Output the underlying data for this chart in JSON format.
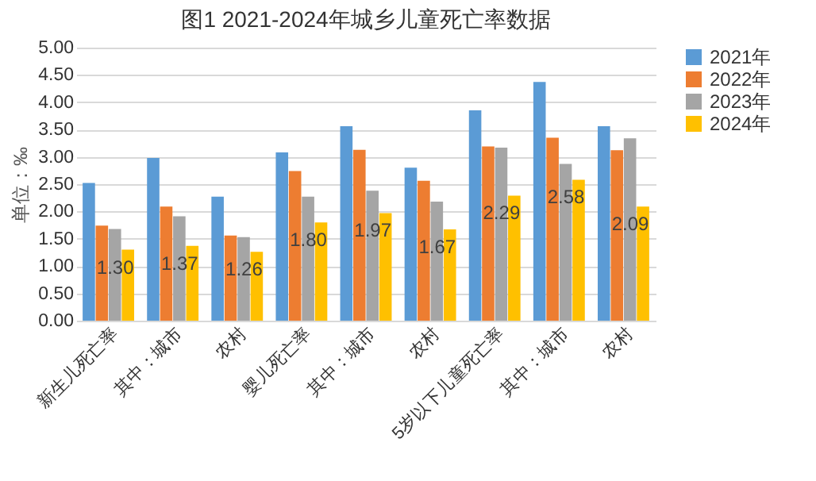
{
  "chart_data": {
    "type": "bar",
    "title": "图1 2021-2024年城乡儿童死亡率数据",
    "ylabel": "单位：‰",
    "categories": [
      "新生儿死亡率",
      "其中：城市",
      "农村",
      "婴儿死亡率",
      "其中：城市",
      "农村",
      "5岁以下儿童死亡率",
      "其中：城市",
      "农村"
    ],
    "series": [
      {
        "name": "2021年",
        "color": "#5b9bd5",
        "values": [
          2.52,
          2.98,
          2.27,
          3.08,
          3.56,
          2.8,
          3.85,
          4.37,
          3.56
        ]
      },
      {
        "name": "2022年",
        "color": "#ed7d31",
        "values": [
          1.74,
          2.09,
          1.56,
          2.74,
          3.13,
          2.56,
          3.19,
          3.35,
          3.12
        ]
      },
      {
        "name": "2023年",
        "color": "#a5a5a5",
        "values": [
          1.68,
          1.91,
          1.53,
          2.27,
          2.38,
          2.18,
          3.17,
          2.87,
          3.34
        ]
      },
      {
        "name": "2024年",
        "color": "#ffc000",
        "values": [
          1.3,
          1.37,
          1.26,
          1.8,
          1.97,
          1.67,
          2.29,
          2.58,
          2.09
        ],
        "value_labels": [
          "1.30",
          "1.37",
          "1.26",
          "1.80",
          "1.97",
          "1.67",
          "2.29",
          "2.58",
          "2.09"
        ]
      }
    ],
    "ylim": [
      0,
      5
    ],
    "yticks": [
      {
        "value": 0,
        "label": "0.00"
      },
      {
        "value": 0.5,
        "label": "0.50"
      },
      {
        "value": 1,
        "label": "1.00"
      },
      {
        "value": 1.5,
        "label": "1.50"
      },
      {
        "value": 2,
        "label": "2.00"
      },
      {
        "value": 2.5,
        "label": "2.50"
      },
      {
        "value": 3,
        "label": "3.00"
      },
      {
        "value": 3.5,
        "label": "3.50"
      },
      {
        "value": 4,
        "label": "4.00"
      },
      {
        "value": 4.5,
        "label": "4.50"
      },
      {
        "value": 5,
        "label": "5.00"
      }
    ],
    "grid": "y",
    "legend": "right"
  }
}
